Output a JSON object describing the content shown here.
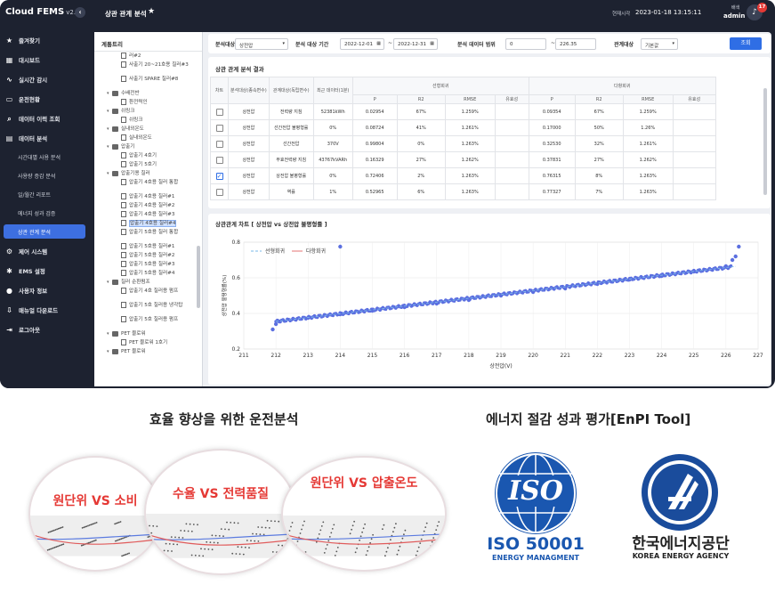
{
  "app": {
    "brand": "Cloud FEMS",
    "version": "v2.0",
    "page_title": "상관 관계 분석",
    "clock_label": "현재시각",
    "clock_time": "2023-01-18 13:15:11",
    "user_role": "배색",
    "user_name": "admin",
    "notif_count": "17"
  },
  "sidebar": {
    "items": [
      {
        "label": "즐겨찾기",
        "icon": "star-icon"
      },
      {
        "label": "대시보드",
        "icon": "grid-icon"
      },
      {
        "label": "실시간 감시",
        "icon": "pulse-icon"
      },
      {
        "label": "운전현황",
        "icon": "monitor-icon"
      },
      {
        "label": "데이터 이력 조회",
        "icon": "search-icon"
      },
      {
        "label": "데이터 분석",
        "icon": "chart-icon"
      }
    ],
    "subitems": [
      "시간대별 사용 분석",
      "사용량 증감 분석",
      "일/월간 리포트",
      "에너지 성과 검증",
      "상관 관계 분석"
    ],
    "items2": [
      {
        "label": "제어 시스템",
        "icon": "gear-icon"
      },
      {
        "label": "EMS 설정",
        "icon": "settings-icon"
      },
      {
        "label": "사용자 정보",
        "icon": "user-icon"
      },
      {
        "label": "매뉴얼 다운로드",
        "icon": "download-icon"
      },
      {
        "label": "로그아웃",
        "icon": "logout-icon"
      }
    ]
  },
  "tree": {
    "title": "계통트리",
    "nodes": [
      {
        "t": "러#2",
        "lvl": 3,
        "kind": "doc"
      },
      {
        "t": "사출기 20~21호용 칠러#3",
        "lvl": 3,
        "kind": "doc"
      },
      {
        "t": "사출기 SPARE 칠러#8",
        "lvl": 3,
        "kind": "doc"
      },
      {
        "t": "수배전반",
        "lvl": 2,
        "kind": "fold"
      },
      {
        "t": "환전력인",
        "lvl": 3,
        "kind": "doc"
      },
      {
        "t": "쉬링크",
        "lvl": 2,
        "kind": "fold"
      },
      {
        "t": "쉬링크",
        "lvl": 3,
        "kind": "doc"
      },
      {
        "t": "실내외온도",
        "lvl": 2,
        "kind": "fold"
      },
      {
        "t": "실내외온도",
        "lvl": 3,
        "kind": "doc"
      },
      {
        "t": "압출기",
        "lvl": 2,
        "kind": "fold"
      },
      {
        "t": "압출기 4호기",
        "lvl": 3,
        "kind": "doc"
      },
      {
        "t": "압출기 5호기",
        "lvl": 3,
        "kind": "doc"
      },
      {
        "t": "압출기용 칠러",
        "lvl": 2,
        "kind": "fold"
      },
      {
        "t": "압출기 4호용 칠러 통합",
        "lvl": 3,
        "kind": "doc"
      },
      {
        "t": "압출기 4호용 칠러#1",
        "lvl": 3,
        "kind": "doc"
      },
      {
        "t": "압출기 4호용 칠러#2",
        "lvl": 3,
        "kind": "doc"
      },
      {
        "t": "압출기 4호용 칠러#3",
        "lvl": 3,
        "kind": "doc"
      },
      {
        "t": "압출기 4호용 칠러#4",
        "lvl": 3,
        "kind": "doc",
        "sel": true
      },
      {
        "t": "압출기 5호용 칠러 통합",
        "lvl": 3,
        "kind": "doc"
      },
      {
        "t": "압출기 5호용 칠러#1",
        "lvl": 3,
        "kind": "doc"
      },
      {
        "t": "압출기 5호용 칠러#2",
        "lvl": 3,
        "kind": "doc"
      },
      {
        "t": "압출기 5호용 칠러#3",
        "lvl": 3,
        "kind": "doc"
      },
      {
        "t": "압출기 5호용 칠러#4",
        "lvl": 3,
        "kind": "doc"
      },
      {
        "t": "칠러 순환펌프",
        "lvl": 2,
        "kind": "fold"
      },
      {
        "t": "압출기 4호 칠러용 펌프",
        "lvl": 3,
        "kind": "doc"
      },
      {
        "t": "압출기 5호 칠러용 냉각탑",
        "lvl": 3,
        "kind": "doc"
      },
      {
        "t": "압출기 5호 칠러용 펌프",
        "lvl": 3,
        "kind": "doc"
      },
      {
        "t": "PET 블로워",
        "lvl": 2,
        "kind": "fold"
      },
      {
        "t": "PET 블로워 1호기",
        "lvl": 3,
        "kind": "doc"
      },
      {
        "t": "PET 블로워",
        "lvl": 2,
        "kind": "fold"
      }
    ]
  },
  "filter": {
    "target_label": "분석대상",
    "target_value": "상전압",
    "period_label": "분석 대상 기간",
    "date_from": "2022-12-01",
    "date_to": "2022-12-31",
    "range_label": "분석 데이터 범위",
    "range_from": "0",
    "range_to": "226.35",
    "rel_label": "관계대상",
    "rel_value": "기본값",
    "search": "조회"
  },
  "result": {
    "title": "상관 관계 분석 결과",
    "headers": {
      "chart": "차트",
      "dep": "분석대상(종속변수)",
      "indep": "관계대상(독립변수)",
      "recent": "최근 데이터(1분)",
      "linear": "선형회귀",
      "multi": "다항회귀",
      "p": "P",
      "r2": "R2",
      "rmse": "RMSE",
      "sig": "유효성"
    },
    "rows": [
      {
        "on": false,
        "dep": "상전압",
        "indep": "전력량 지침",
        "recent": "52381kWh",
        "lp": "0.02954",
        "lr2": "67%",
        "lrmse": "1.259%",
        "mp": "0.09354",
        "mr2": "67%",
        "mrmse": "1.259%"
      },
      {
        "on": false,
        "dep": "상전압",
        "indep": "선간전압 불평형률",
        "recent": "0%",
        "lp": "0.08724",
        "lr2": "41%",
        "lrmse": "1.261%",
        "mp": "0.17000",
        "mr2": "50%",
        "mrmse": "1.26%"
      },
      {
        "on": false,
        "dep": "상전압",
        "indep": "선간전압",
        "recent": "370V",
        "lp": "0.99804",
        "lr2": "0%",
        "lrmse": "1.263%",
        "mp": "0.32530",
        "mr2": "32%",
        "mrmse": "1.261%"
      },
      {
        "on": false,
        "dep": "상전압",
        "indep": "무효전력량 지침",
        "recent": "43767kVARh",
        "lp": "0.16329",
        "lr2": "27%",
        "lrmse": "1.262%",
        "mp": "0.37831",
        "mr2": "27%",
        "mrmse": "1.262%"
      },
      {
        "on": true,
        "dep": "상전압",
        "indep": "상전압 불평형률",
        "recent": "0%",
        "lp": "0.72406",
        "lr2": "2%",
        "lrmse": "1.263%",
        "mp": "0.76315",
        "mr2": "8%",
        "mrmse": "1.263%"
      },
      {
        "on": false,
        "dep": "상전압",
        "indep": "역률",
        "recent": "1%",
        "lp": "0.52965",
        "lr2": "6%",
        "lrmse": "1.263%",
        "mp": "0.77327",
        "mr2": "7%",
        "mrmse": "1.263%"
      }
    ]
  },
  "chart_panel": {
    "title": "상관관계 차트 [ 상전압 vs 상전압 불평형률 ]"
  },
  "chart_data": {
    "type": "scatter",
    "xlabel": "상전압(V)",
    "ylabel": "상전압 불평형률(%)",
    "xlim": [
      211,
      227
    ],
    "ylim": [
      0.2,
      0.8
    ],
    "xticks": [
      211,
      212,
      213,
      214,
      215,
      216,
      217,
      218,
      219,
      220,
      221,
      222,
      223,
      224,
      225,
      226,
      227
    ],
    "yticks": [
      0.2,
      0.4,
      0.6,
      0.8
    ],
    "legend": [
      "선형회귀",
      "다항회귀"
    ],
    "legend_position": "top-left",
    "series_color": "#5b6fe0",
    "linear_fit": [
      [
        212.0,
        0.355
      ],
      [
        226.3,
        0.664
      ]
    ],
    "points_approx": [
      [
        211.9,
        0.31
      ],
      [
        212.0,
        0.34
      ],
      [
        212.1,
        0.355
      ],
      [
        213.0,
        0.375
      ],
      [
        214.0,
        0.395
      ],
      [
        215.0,
        0.415
      ],
      [
        216.0,
        0.435
      ],
      [
        217.0,
        0.455
      ],
      [
        218.0,
        0.475
      ],
      [
        219.0,
        0.5
      ],
      [
        220.0,
        0.52
      ],
      [
        221.0,
        0.54
      ],
      [
        222.0,
        0.565
      ],
      [
        223.0,
        0.59
      ],
      [
        224.0,
        0.61
      ],
      [
        225.0,
        0.635
      ],
      [
        226.0,
        0.665
      ],
      [
        226.2,
        0.7
      ],
      [
        226.3,
        0.72
      ],
      [
        226.4,
        0.775
      ],
      [
        214.0,
        0.775
      ]
    ]
  },
  "bottom": {
    "left_title": "효율 향상을 위한 운전분석",
    "right_title": "에너지 절감 성과 평가[EnPI Tool]",
    "circles": [
      "원단위 VS 소비",
      "수율 VS 전력품질",
      "원단위 VS 압출온도"
    ],
    "iso_mark": "ISO",
    "iso_number": "ISO 50001",
    "iso_sub": "ENERGY MANAGMENT",
    "kea_name": "한국에너지공단",
    "kea_eng": "KOREA ENERGY AGENCY",
    "colors": {
      "iso_blue": "#1a57b0",
      "kea_blue": "#1a4c9c",
      "accent_red": "#e53935"
    }
  }
}
